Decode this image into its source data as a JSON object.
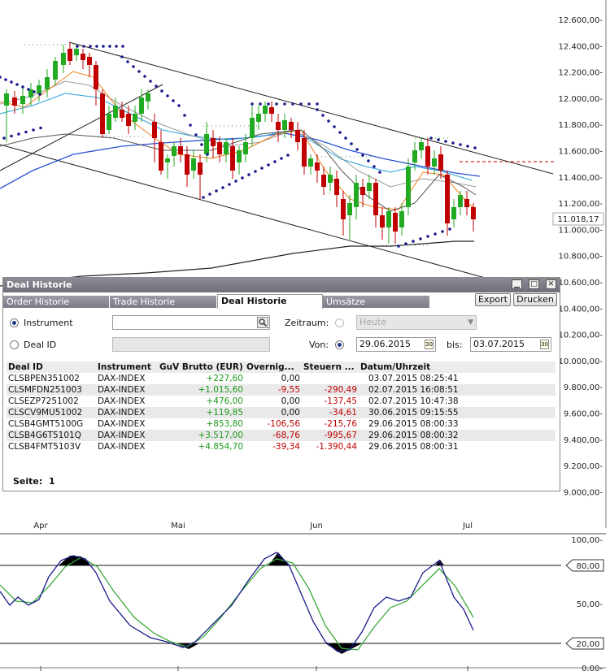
{
  "price_axis": [
    "12.600,00-",
    "12.400,00-",
    "12.200,00-",
    "12.000,00-",
    "11.800,00-",
    "11.600,00-",
    "11.400,00-",
    "11.200,00-",
    "11.000,00-",
    "10.800,00-",
    "10.600,00-",
    "10.400,00-",
    "10.200,00-",
    "10.000,00-",
    "9.800,00-",
    "9.600,00-",
    "9.400,00-",
    "9.200,00-",
    "9.000,00-"
  ],
  "current_price_label": "11.018,17",
  "months": [
    "Apr",
    "Mai",
    "Jun",
    "Jul"
  ],
  "oscillator_axis": [
    "100,00-",
    "50,00-",
    "0,00-"
  ],
  "oscillator_levels": [
    "80,00",
    "20,00"
  ],
  "colors": {
    "up": "#22aa22",
    "down": "#c00000",
    "psar": "#1a1a8c",
    "osc_k": "#1a1a8c",
    "osc_d": "#3aaa3a"
  },
  "dialog": {
    "title": "Deal Historie",
    "tabs": [
      "Order Historie",
      "Trade Historie",
      "Deal Historie",
      "Umsätze"
    ],
    "active_tab": "Deal Historie",
    "export_label": "Export",
    "print_label": "Drucken",
    "instrument_label": "Instrument",
    "dealid_label": "Deal ID",
    "zeitraum_label": "Zeitraum:",
    "zeitraum_value": "Heute",
    "von_label": "Von:",
    "von_value": "29.06.2015",
    "bis_label": "bis:",
    "bis_value": "03.07.2015",
    "columns": [
      "Deal ID",
      "Instrument",
      "GuV Brutto (EUR)",
      "Overnig...",
      "Steuern ...",
      "Datum/Uhrzeit"
    ],
    "rows": [
      [
        "CLSBPEN351002",
        "DAX-INDEX",
        "+227,60",
        "0,00",
        "",
        "03.07.2015 08:25:41"
      ],
      [
        "CLSMFDN251003",
        "DAX-INDEX",
        "+1.015,60",
        "-9,55",
        "-290,49",
        "02.07.2015 16:08:51"
      ],
      [
        "CLSEZP7251002",
        "DAX-INDEX",
        "+476,00",
        "0,00",
        "-137,45",
        "02.07.2015 10:47:38"
      ],
      [
        "CLSCV9MU51002",
        "DAX-INDEX",
        "+119,85",
        "0,00",
        "-34,61",
        "30.06.2015 09:15:55"
      ],
      [
        "CLSB4GMT5100G",
        "DAX-INDEX",
        "+853,80",
        "-106,56",
        "-215,76",
        "29.06.2015 08:00:33"
      ],
      [
        "CLSB4G6T5101Q",
        "DAX-INDEX",
        "+3.517,00",
        "-68,76",
        "-995,67",
        "29.06.2015 08:00:32"
      ],
      [
        "CLSB4FMT5103V",
        "DAX-INDEX",
        "+4.854,70",
        "-39,34",
        "-1.390,44",
        "29.06.2015 08:00:31"
      ]
    ],
    "page_label": "Seite:",
    "page_value": "1"
  }
}
